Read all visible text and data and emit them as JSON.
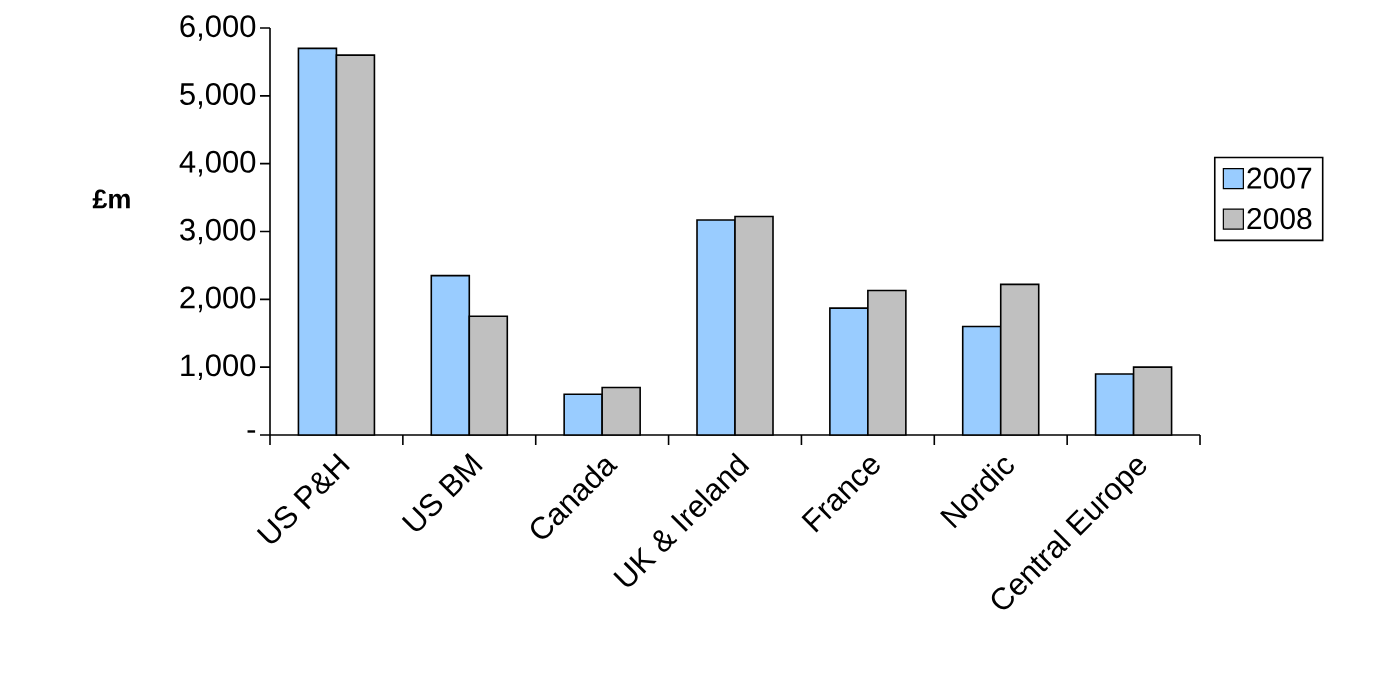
{
  "chart_data": {
    "type": "bar",
    "ylabel": "£m",
    "categories": [
      "US P&H",
      "US BM",
      "Canada",
      "UK & Ireland",
      "France",
      "Nordic",
      "Central Europe"
    ],
    "series": [
      {
        "name": "2007",
        "color": "#99ccff",
        "values": [
          5700,
          2350,
          600,
          3170,
          1870,
          1600,
          900
        ]
      },
      {
        "name": "2008",
        "color": "#c0c0c0",
        "values": [
          5600,
          1750,
          700,
          3220,
          2130,
          2220,
          1000
        ]
      }
    ],
    "ylim": [
      0,
      6000
    ],
    "yticks": [
      {
        "value": 0,
        "label": "-"
      },
      {
        "value": 1000,
        "label": "1,000"
      },
      {
        "value": 2000,
        "label": "2,000"
      },
      {
        "value": 3000,
        "label": "3,000"
      },
      {
        "value": 4000,
        "label": "4,000"
      },
      {
        "value": 5000,
        "label": "5,000"
      },
      {
        "value": 6000,
        "label": "6,000"
      }
    ],
    "legend": "right",
    "grid": false
  }
}
